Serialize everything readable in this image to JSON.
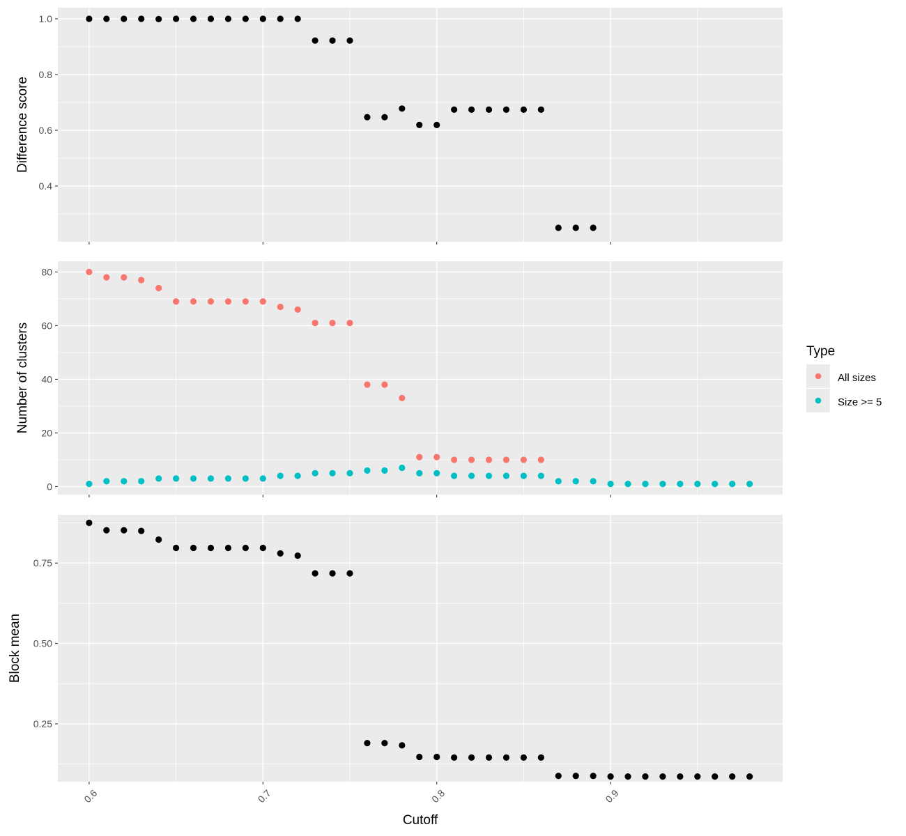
{
  "colors": {
    "panel_bg": "#EBEBEB",
    "grid": "#FFFFFF",
    "tick": "#333333",
    "all_sizes": "#F8766D",
    "size_ge_5": "#00BFC4",
    "points": "#000000"
  },
  "chart_data": [
    {
      "type": "scatter",
      "ylabel": "Difference score",
      "ylim": [
        0.2,
        1.04
      ],
      "yticks": [
        0.4,
        0.6,
        0.8,
        1.0
      ],
      "ytick_labels": [
        "0.4",
        "0.6",
        "0.8",
        "1.0"
      ],
      "xlim": [
        0.582,
        0.999
      ],
      "grid": true,
      "x": [
        0.6,
        0.61,
        0.62,
        0.63,
        0.64,
        0.65,
        0.66,
        0.67,
        0.68,
        0.69,
        0.7,
        0.71,
        0.72,
        0.73,
        0.74,
        0.75,
        0.76,
        0.77,
        0.78,
        0.79,
        0.8,
        0.81,
        0.82,
        0.83,
        0.84,
        0.85,
        0.86,
        0.87,
        0.88,
        0.89
      ],
      "y": [
        1.0,
        1.0,
        1.0,
        1.0,
        0.999,
        1.0,
        1.0,
        1.0,
        1.0,
        1.0,
        1.0,
        1.0,
        1.0,
        0.922,
        0.922,
        0.922,
        0.647,
        0.647,
        0.678,
        0.619,
        0.619,
        0.674,
        0.674,
        0.674,
        0.674,
        0.674,
        0.674,
        0.25,
        0.25,
        0.25
      ]
    },
    {
      "type": "scatter",
      "ylabel": "Number of clusters",
      "ylim": [
        -3,
        84
      ],
      "yticks": [
        0,
        20,
        40,
        60,
        80
      ],
      "ytick_labels": [
        "0",
        "20",
        "40",
        "60",
        "80"
      ],
      "xlim": [
        0.582,
        0.999
      ],
      "grid": true,
      "legend": {
        "title": "Type",
        "placement": "right"
      },
      "series": [
        {
          "name": "All sizes",
          "color": "#F8766D",
          "x": [
            0.6,
            0.61,
            0.62,
            0.63,
            0.64,
            0.65,
            0.66,
            0.67,
            0.68,
            0.69,
            0.7,
            0.71,
            0.72,
            0.73,
            0.74,
            0.75,
            0.76,
            0.77,
            0.78,
            0.79,
            0.8,
            0.81,
            0.82,
            0.83,
            0.84,
            0.85,
            0.86
          ],
          "y": [
            80,
            78,
            78,
            77,
            74,
            69,
            69,
            69,
            69,
            69,
            69,
            67,
            66,
            61,
            61,
            61,
            38,
            38,
            33,
            11,
            11,
            10,
            10,
            10,
            10,
            10,
            10
          ]
        },
        {
          "name": "Size >= 5",
          "color": "#00BFC4",
          "x": [
            0.6,
            0.61,
            0.62,
            0.63,
            0.64,
            0.65,
            0.66,
            0.67,
            0.68,
            0.69,
            0.7,
            0.71,
            0.72,
            0.73,
            0.74,
            0.75,
            0.76,
            0.77,
            0.78,
            0.79,
            0.8,
            0.81,
            0.82,
            0.83,
            0.84,
            0.85,
            0.86,
            0.87,
            0.88,
            0.89,
            0.9,
            0.91,
            0.92,
            0.93,
            0.94,
            0.95,
            0.96,
            0.97,
            0.98
          ],
          "y": [
            1,
            2,
            2,
            2,
            3,
            3,
            3,
            3,
            3,
            3,
            3,
            4,
            4,
            5,
            5,
            5,
            6,
            6,
            7,
            5,
            5,
            4,
            4,
            4,
            4,
            4,
            4,
            2,
            2,
            2,
            1,
            1,
            1,
            1,
            1,
            1,
            1,
            1,
            1
          ]
        }
      ]
    },
    {
      "type": "scatter",
      "ylabel": "Block mean",
      "xlabel": "Cutoff",
      "ylim": [
        0.07,
        0.9
      ],
      "yticks": [
        0.25,
        0.5,
        0.75
      ],
      "ytick_labels": [
        "0.25",
        "0.50",
        "0.75"
      ],
      "xlim": [
        0.582,
        0.999
      ],
      "xticks": [
        0.6,
        0.7,
        0.8,
        0.9
      ],
      "xtick_labels": [
        "0.6",
        "0.7",
        "0.8",
        "0.9"
      ],
      "grid": true,
      "x": [
        0.6,
        0.61,
        0.62,
        0.63,
        0.64,
        0.65,
        0.66,
        0.67,
        0.68,
        0.69,
        0.7,
        0.71,
        0.72,
        0.73,
        0.74,
        0.75,
        0.76,
        0.77,
        0.78,
        0.79,
        0.8,
        0.81,
        0.82,
        0.83,
        0.84,
        0.85,
        0.86,
        0.87,
        0.88,
        0.89,
        0.9,
        0.91,
        0.92,
        0.93,
        0.94,
        0.95,
        0.96,
        0.97,
        0.98
      ],
      "y": [
        0.875,
        0.852,
        0.852,
        0.85,
        0.823,
        0.797,
        0.797,
        0.797,
        0.797,
        0.797,
        0.797,
        0.78,
        0.773,
        0.718,
        0.718,
        0.718,
        0.19,
        0.19,
        0.183,
        0.147,
        0.147,
        0.145,
        0.145,
        0.145,
        0.145,
        0.145,
        0.145,
        0.088,
        0.088,
        0.088,
        0.086,
        0.086,
        0.086,
        0.086,
        0.086,
        0.086,
        0.086,
        0.086,
        0.086
      ]
    }
  ]
}
